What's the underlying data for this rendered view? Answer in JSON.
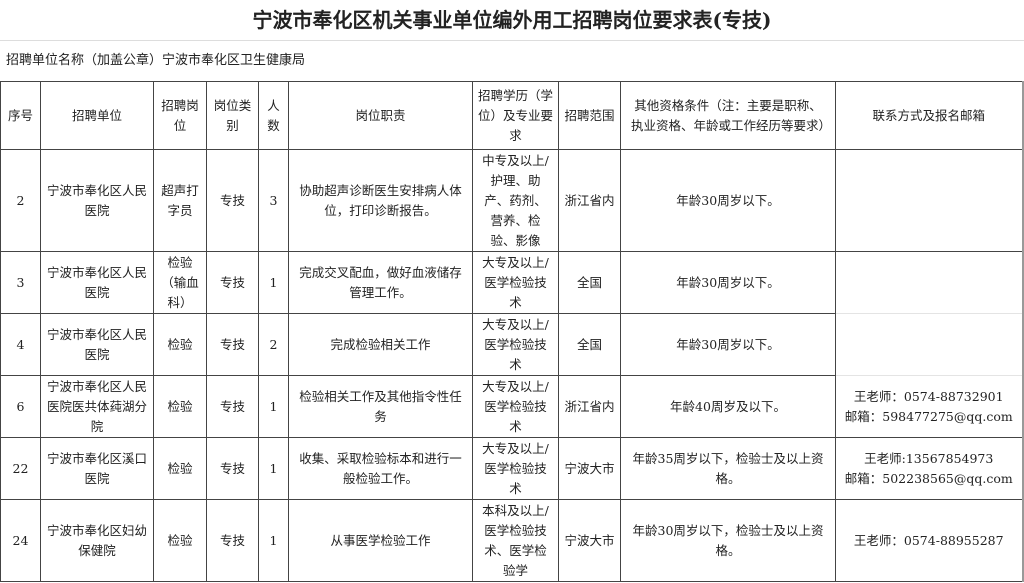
{
  "title": "宁波市奉化区机关事业单位编外用工招聘岗位要求表(专技)",
  "unit_label": "招聘单位名称（加盖公章）宁波市奉化区卫生健康局",
  "headers": [
    "序号",
    "招聘单位",
    "招聘岗位",
    "岗位类别",
    "人数",
    "岗位职责",
    "招聘学历（学位）及专业要求",
    "招聘范围",
    "其他资格条件（注：主要是职称、执业资格、年龄或工作经历等要求）",
    "联系方式及报名邮箱"
  ],
  "rows": [
    {
      "no": "2",
      "unit": "宁波市奉化区人民医院",
      "post": "超声打字员",
      "type": "专技",
      "count": "3",
      "duty": "协助超声诊断医生安排病人体位，打印诊断报告。",
      "edu": "中专及以上/护理、助产、药剂、营养、检验、影像",
      "scope": "浙江省内",
      "other": "年龄30周岁以下。",
      "contact1": "",
      "contact2": ""
    },
    {
      "no": "3",
      "unit": "宁波市奉化区人民医院",
      "post": "检验（输血科）",
      "type": "专技",
      "count": "1",
      "duty": "完成交叉配血，做好血液储存管理工作。",
      "edu": "大专及以上/医学检验技术",
      "scope": "全国",
      "other": "年龄30周岁以下。",
      "contact1": "",
      "contact2": ""
    },
    {
      "no": "4",
      "unit": "宁波市奉化区人民医院",
      "post": "检验",
      "type": "专技",
      "count": "2",
      "duty": "完成检验相关工作",
      "edu": "大专及以上/医学检验技术",
      "scope": "全国",
      "other": "年龄30周岁以下。",
      "contact1": "",
      "contact2": ""
    },
    {
      "no": "6",
      "unit": "宁波市奉化区人民医院医共体莼湖分院",
      "post": "检验",
      "type": "专技",
      "count": "1",
      "duty": "检验相关工作及其他指令性任务",
      "edu": "大专及以上/医学检验技术",
      "scope": "浙江省内",
      "other": "年龄40周岁及以下。",
      "contact1": "王老师：0574-88732901",
      "contact2": "邮箱：598477275@qq.com"
    },
    {
      "no": "22",
      "unit": "宁波市奉化区溪口医院",
      "post": "检验",
      "type": "专技",
      "count": "1",
      "duty": "收集、采取检验标本和进行一般检验工作。",
      "edu": "大专及以上/医学检验技术",
      "scope": "宁波大市",
      "other": "年龄35周岁以下，检验士及以上资格。",
      "contact1": "王老师:13567854973",
      "contact2": "邮箱：502238565@qq.com"
    },
    {
      "no": "24",
      "unit": "宁波市奉化区妇幼保健院",
      "post": "检验",
      "type": "专技",
      "count": "1",
      "duty": "从事医学检验工作",
      "edu": "本科及以上/医学检验技术、医学检验学",
      "scope": "宁波大市",
      "other": "年龄30周岁以下，检验士及以上资格。",
      "contact1": "王老师：0574-88955287",
      "contact2": ""
    }
  ]
}
